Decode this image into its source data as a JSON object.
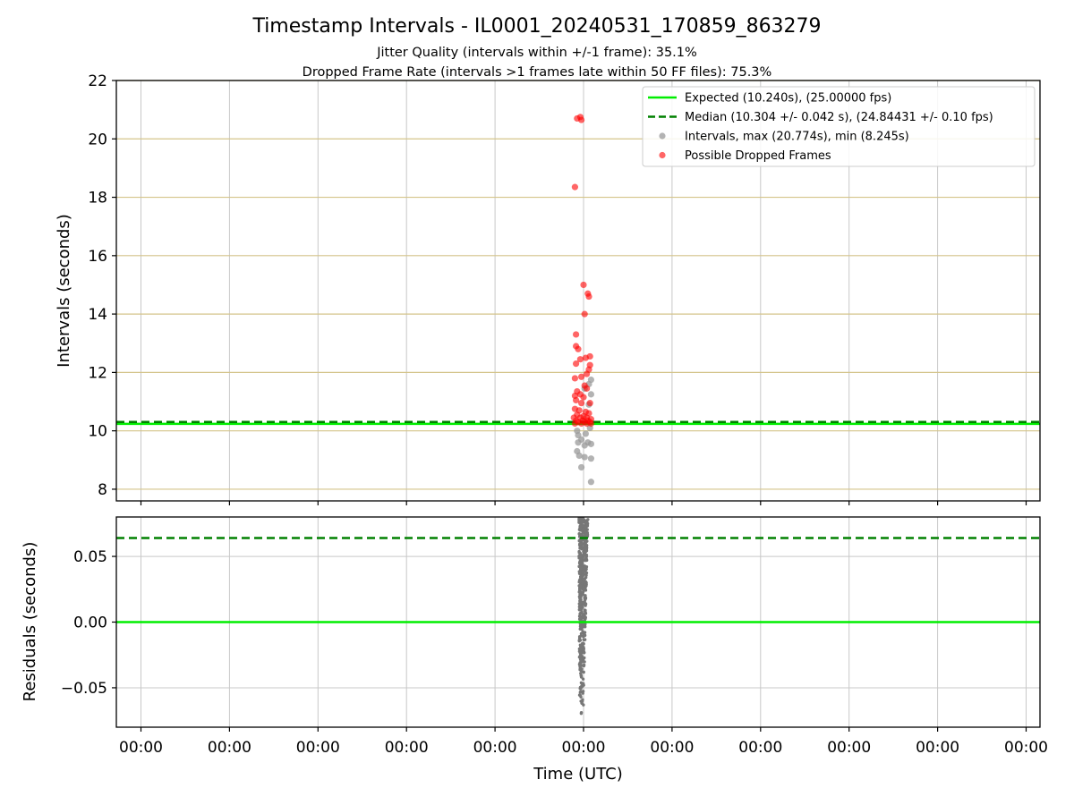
{
  "figure": {
    "title": "Timestamp Intervals - IL0001_20240531_170859_863279",
    "subtitle_1": "Jitter Quality (intervals within +/-1 frame): 35.1%",
    "subtitle_2": "Dropped Frame Rate (intervals >1 frames late within 50 FF files): 75.3%"
  },
  "chart_data": [
    {
      "type": "scatter",
      "panel": "top",
      "ylabel": "Intervals (seconds)",
      "xlabel": "",
      "ylim": [
        7.6,
        22
      ],
      "yticks": [
        8,
        10,
        12,
        14,
        16,
        18,
        20,
        22
      ],
      "xtick_labels": [
        "00:00",
        "00:00",
        "00:00",
        "00:00",
        "00:00",
        "00:00",
        "00:00",
        "00:00",
        "00:00",
        "00:00",
        "00:00"
      ],
      "grid": true,
      "legend_position": "top-right",
      "colors": {
        "expected": "#00ee00",
        "median": "#008000",
        "intervals": "#999999",
        "dropped": "#ff0000",
        "hgrid": "#d4c48a",
        "vgrid": "#c8c8c8"
      },
      "reference_lines": [
        {
          "name": "Expected (10.240s), (25.00000 fps)",
          "y": 10.24,
          "style": "solid"
        },
        {
          "name": "Median (10.304 +/- 0.042 s), (24.84431 +/- 0.10 fps)",
          "y": 10.304,
          "style": "dashed"
        }
      ],
      "series": [
        {
          "name": "Intervals, max (20.774s), min (8.245s)",
          "points": [
            [
              -0.06,
              10.0
            ],
            [
              -0.05,
              9.85
            ],
            [
              -0.02,
              9.7
            ],
            [
              0.02,
              9.9
            ],
            [
              0.04,
              9.6
            ],
            [
              -0.05,
              9.6
            ],
            [
              0.07,
              9.55
            ],
            [
              0.01,
              9.5
            ],
            [
              -0.06,
              9.3
            ],
            [
              -0.04,
              9.15
            ],
            [
              0.01,
              9.1
            ],
            [
              0.07,
              9.05
            ],
            [
              -0.02,
              8.75
            ],
            [
              0.07,
              8.25
            ],
            [
              0.06,
              10.1
            ],
            [
              0.05,
              10.9
            ],
            [
              0.07,
              11.25
            ],
            [
              0.07,
              11.75
            ],
            [
              0.05,
              11.6
            ],
            [
              0.01,
              11.45
            ]
          ]
        },
        {
          "name": "Possible Dropped Frames",
          "points": [
            [
              -0.03,
              20.75
            ],
            [
              -0.06,
              20.7
            ],
            [
              -0.02,
              20.65
            ],
            [
              -0.08,
              18.35
            ],
            [
              0.0,
              15.0
            ],
            [
              0.04,
              14.7
            ],
            [
              0.05,
              14.6
            ],
            [
              0.01,
              14.0
            ],
            [
              -0.07,
              13.3
            ],
            [
              -0.07,
              12.9
            ],
            [
              -0.05,
              12.8
            ],
            [
              0.06,
              12.55
            ],
            [
              -0.03,
              12.45
            ],
            [
              0.02,
              12.5
            ],
            [
              0.06,
              12.25
            ],
            [
              0.05,
              12.1
            ],
            [
              -0.07,
              12.3
            ],
            [
              -0.08,
              11.8
            ],
            [
              0.03,
              11.95
            ],
            [
              -0.02,
              11.85
            ],
            [
              0.01,
              11.55
            ],
            [
              0.03,
              11.45
            ],
            [
              -0.06,
              11.35
            ],
            [
              -0.08,
              11.2
            ],
            [
              -0.03,
              11.25
            ],
            [
              0.0,
              11.15
            ],
            [
              -0.07,
              11.05
            ],
            [
              -0.02,
              10.95
            ],
            [
              0.06,
              10.95
            ],
            [
              -0.08,
              10.75
            ],
            [
              -0.04,
              10.7
            ],
            [
              0.02,
              10.65
            ],
            [
              0.05,
              10.6
            ],
            [
              -0.06,
              10.55
            ],
            [
              0.0,
              10.5
            ],
            [
              -0.09,
              10.45
            ],
            [
              -0.03,
              10.45
            ],
            [
              0.03,
              10.45
            ],
            [
              0.07,
              10.4
            ],
            [
              -0.07,
              10.35
            ],
            [
              -0.01,
              10.35
            ],
            [
              0.04,
              10.35
            ],
            [
              -0.05,
              10.3
            ],
            [
              0.01,
              10.3
            ],
            [
              0.06,
              10.3
            ],
            [
              -0.08,
              10.25
            ],
            [
              -0.02,
              10.25
            ],
            [
              0.03,
              10.25
            ],
            [
              0.07,
              10.25
            ]
          ]
        }
      ]
    },
    {
      "type": "scatter",
      "panel": "bottom",
      "ylabel": "Residuals (seconds)",
      "xlabel": "Time (UTC)",
      "ylim": [
        -0.08,
        0.08
      ],
      "yticks": [
        -0.05,
        0.0,
        0.05
      ],
      "ytick_labels": [
        "−0.05",
        "0.00",
        "0.05"
      ],
      "xtick_labels": [
        "00:00",
        "00:00",
        "00:00",
        "00:00",
        "00:00",
        "00:00",
        "00:00",
        "00:00",
        "00:00",
        "00:00",
        "00:00"
      ],
      "grid": true,
      "reference_lines": [
        {
          "y": 0.0,
          "style": "solid",
          "color": "#00ee00"
        },
        {
          "y": 0.064,
          "style": "dashed",
          "color": "#008000"
        }
      ],
      "series": [
        {
          "points_summary": "dense column of residuals",
          "x_range": [
            -0.1,
            0.06
          ],
          "y_range": [
            -0.07,
            0.08
          ],
          "color": "#777777"
        }
      ]
    }
  ]
}
